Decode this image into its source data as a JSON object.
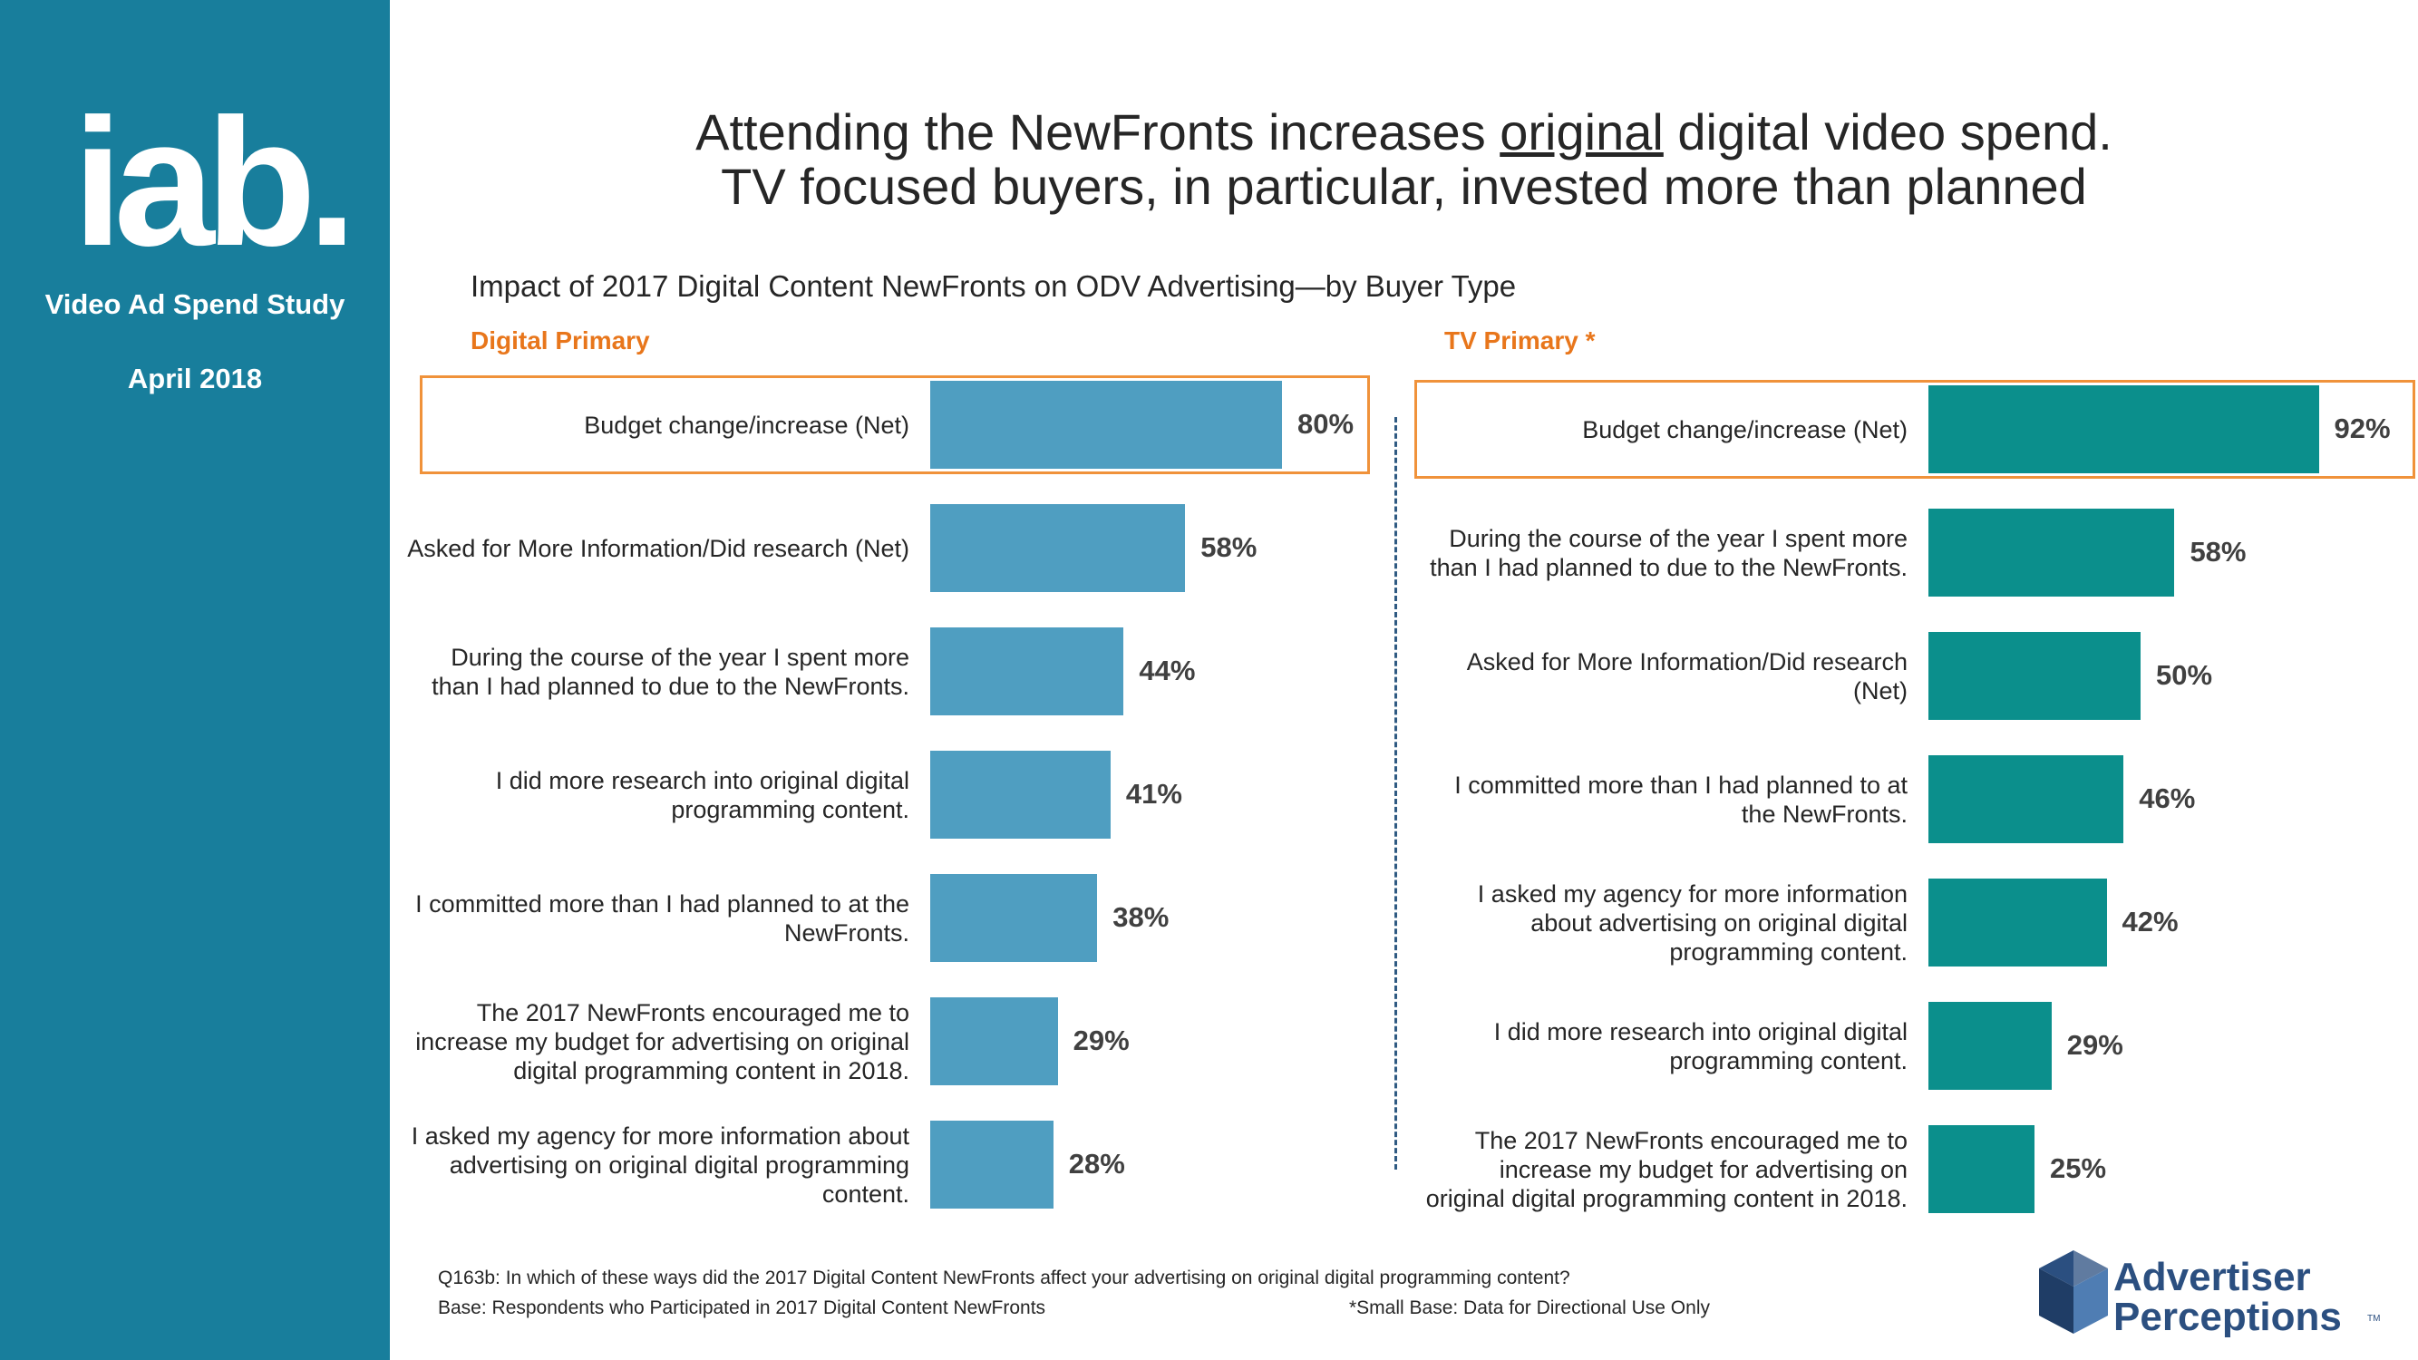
{
  "sidebar": {
    "logo_text": "iab.",
    "study": "Video Ad Spend Study",
    "date": "April 2018"
  },
  "title": {
    "line1_pre": "Attending the NewFronts increases ",
    "line1_underlined": "original",
    "line1_post": " digital video spend.",
    "line2": "TV focused buyers, in particular, invested more than planned"
  },
  "subtitle": "Impact of 2017 Digital Content NewFronts on ODV Advertising—by Buyer Type",
  "colors": {
    "digital_bar": "#4f9ec1",
    "tv_bar": "#0b8f8c",
    "highlight": "#f0923a",
    "sidebar": "#187e9c"
  },
  "chart_data": [
    {
      "type": "bar",
      "orientation": "horizontal",
      "title": "Digital Primary",
      "unit": "%",
      "xlim": [
        0,
        100
      ],
      "categories": [
        "Budget change/increase (Net)",
        "Asked for More Information/Did research (Net)",
        "During the course of the year I spent more than I had planned to due to the NewFronts.",
        "I did more research into original digital programming content.",
        "I committed more than I had planned to at the NewFronts.",
        "The 2017 NewFronts encouraged me to increase my budget for advertising on original digital programming content in 2018.",
        "I asked my agency for more information about advertising on original digital programming content."
      ],
      "values": [
        80,
        58,
        44,
        41,
        38,
        29,
        28
      ],
      "labels": [
        "80%",
        "58%",
        "44%",
        "41%",
        "38%",
        "29%",
        "28%"
      ],
      "highlighted_index": 0
    },
    {
      "type": "bar",
      "orientation": "horizontal",
      "title": "TV Primary *",
      "unit": "%",
      "xlim": [
        0,
        100
      ],
      "categories": [
        "Budget change/increase (Net)",
        "During the course of the year I spent more than I had planned to due to the NewFronts.",
        "Asked for More Information/Did research (Net)",
        "I committed more than I had planned to at the NewFronts.",
        "I asked my agency for more information about advertising on original digital programming content.",
        "I did more research into original digital programming content.",
        "The 2017 NewFronts encouraged me to increase my budget for advertising on original digital programming content in 2018."
      ],
      "values": [
        92,
        58,
        50,
        46,
        42,
        29,
        25
      ],
      "labels": [
        "92%",
        "58%",
        "50%",
        "46%",
        "42%",
        "29%",
        "25%"
      ],
      "highlighted_index": 0
    }
  ],
  "footnotes": {
    "question": "Q163b: In which of these ways did the 2017 Digital Content NewFronts affect your advertising on original digital programming content?",
    "base": "Base: Respondents who Participated in 2017 Digital Content NewFronts",
    "small_base": "*Small Base: Data for Directional Use Only"
  },
  "brand": {
    "line1": "Advertiser",
    "line2": "Perceptions",
    "tm": "TM"
  }
}
